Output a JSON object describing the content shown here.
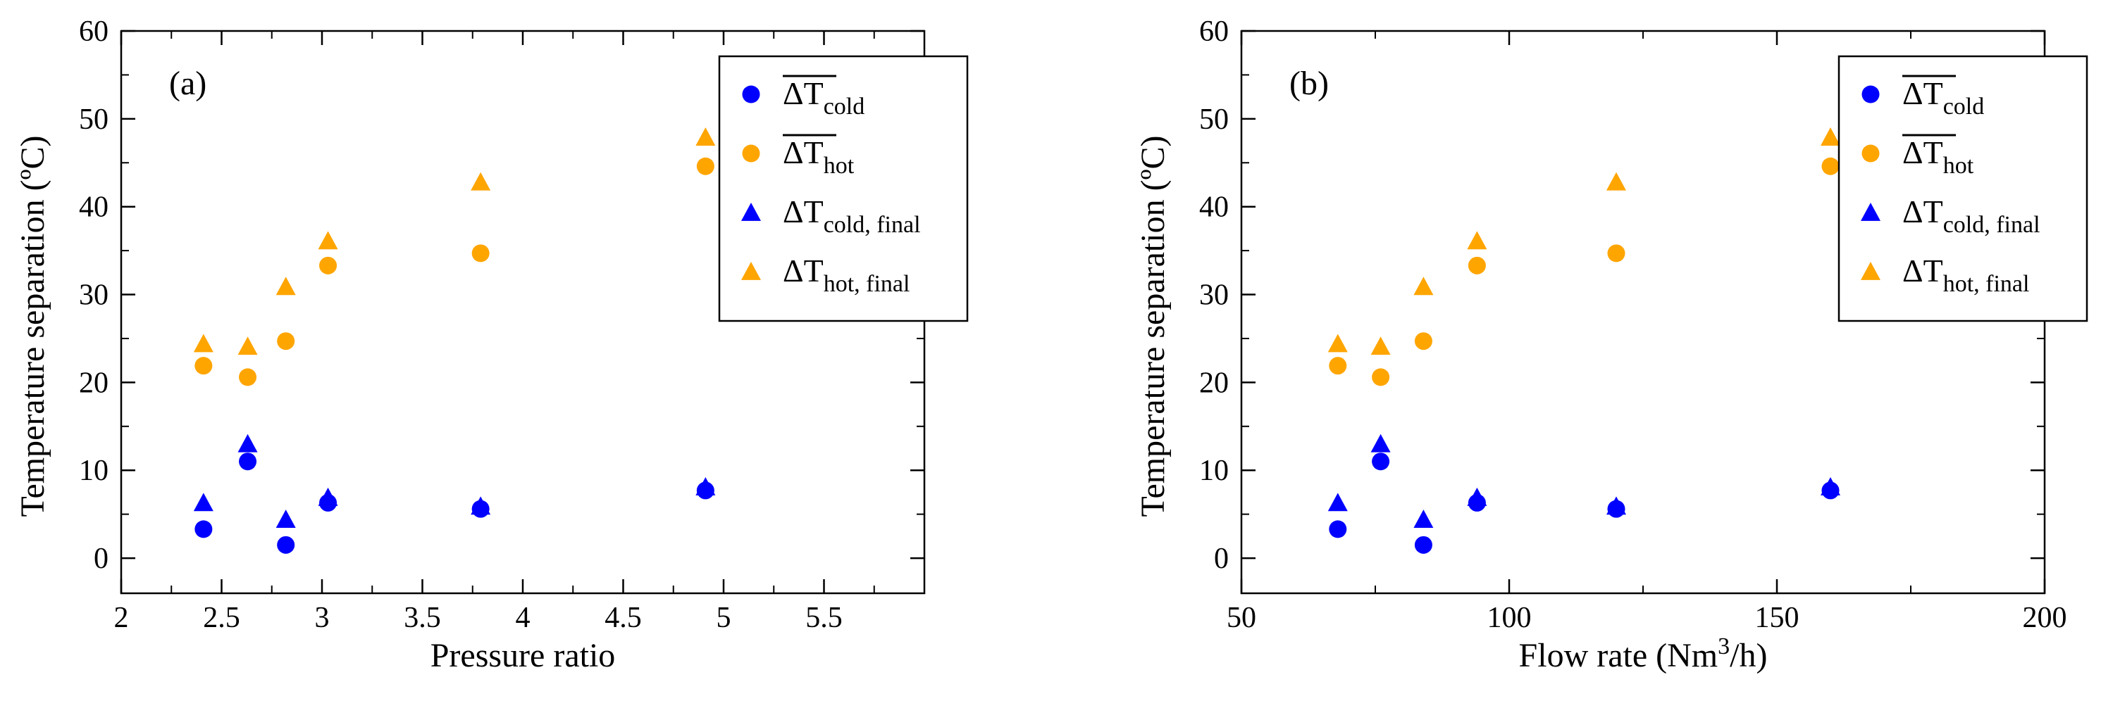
{
  "chart_data": [
    {
      "type": "scatter",
      "panel_label": "(a)",
      "xlabel": "Pressure ratio",
      "ylabel": "Temperature separation (ºC)",
      "xlim": [
        2,
        6
      ],
      "ylim": [
        -4,
        60
      ],
      "xticks": [
        "2",
        "2.5",
        "3",
        "3.5",
        "4",
        "4.5",
        "5",
        "5.5"
      ],
      "xtick_values": [
        2,
        2.5,
        3,
        3.5,
        4,
        4.5,
        5,
        5.5
      ],
      "yticks": [
        "0",
        "10",
        "20",
        "30",
        "40",
        "50",
        "60"
      ],
      "ytick_values": [
        0,
        10,
        20,
        30,
        40,
        50,
        60
      ],
      "x": [
        2.41,
        2.63,
        2.82,
        3.03,
        3.79,
        4.91
      ],
      "series": [
        {
          "name": "ΔT_cold_mean",
          "marker": "circle",
          "color": "#0000ff",
          "values": [
            3.3,
            11.0,
            1.5,
            6.3,
            5.6,
            7.7
          ]
        },
        {
          "name": "ΔT_hot_mean",
          "marker": "circle",
          "color": "#ffa500",
          "values": [
            21.9,
            20.6,
            24.7,
            33.3,
            34.7,
            44.6
          ]
        },
        {
          "name": "ΔT_cold_final",
          "marker": "triangle",
          "color": "#0000ff",
          "values": [
            6.3,
            13.0,
            4.4,
            6.9,
            5.9,
            8.1
          ]
        },
        {
          "name": "ΔT_hot_final",
          "marker": "triangle",
          "color": "#ffa500",
          "values": [
            24.4,
            24.1,
            30.9,
            36.1,
            42.8,
            47.9
          ]
        }
      ]
    },
    {
      "type": "scatter",
      "panel_label": "(b)",
      "xlabel_main": "Flow rate (Nm",
      "xlabel_sup": "3",
      "xlabel_end": "/h)",
      "ylabel": "Temperature separation (ºC)",
      "xlim": [
        50,
        200
      ],
      "ylim": [
        -4,
        60
      ],
      "xticks": [
        "50",
        "100",
        "150",
        "200"
      ],
      "xtick_values": [
        50,
        100,
        150,
        200
      ],
      "yticks": [
        "0",
        "10",
        "20",
        "30",
        "40",
        "50",
        "60"
      ],
      "ytick_values": [
        0,
        10,
        20,
        30,
        40,
        50,
        60
      ],
      "x": [
        68,
        76,
        84,
        94,
        120,
        160
      ],
      "series": [
        {
          "name": "ΔT_cold_mean",
          "marker": "circle",
          "color": "#0000ff",
          "values": [
            3.3,
            11.0,
            1.5,
            6.3,
            5.6,
            7.7
          ]
        },
        {
          "name": "ΔT_hot_mean",
          "marker": "circle",
          "color": "#ffa500",
          "values": [
            21.9,
            20.6,
            24.7,
            33.3,
            34.7,
            44.6
          ]
        },
        {
          "name": "ΔT_cold_final",
          "marker": "triangle",
          "color": "#0000ff",
          "values": [
            6.3,
            13.0,
            4.4,
            6.9,
            5.9,
            8.1
          ]
        },
        {
          "name": "ΔT_hot_final",
          "marker": "triangle",
          "color": "#ffa500",
          "values": [
            24.4,
            24.1,
            30.9,
            36.1,
            42.8,
            47.9
          ]
        }
      ]
    }
  ],
  "legend": [
    {
      "main": "ΔT",
      "sub": "cold",
      "overline": true,
      "marker": "circle",
      "color": "#0000ff"
    },
    {
      "main": "ΔT",
      "sub": "hot",
      "overline": true,
      "marker": "circle",
      "color": "#ffa500"
    },
    {
      "main": "ΔT",
      "sub": "cold, final",
      "overline": false,
      "marker": "triangle",
      "color": "#0000ff"
    },
    {
      "main": "ΔT",
      "sub": "hot, final",
      "overline": false,
      "marker": "triangle",
      "color": "#ffa500"
    }
  ]
}
